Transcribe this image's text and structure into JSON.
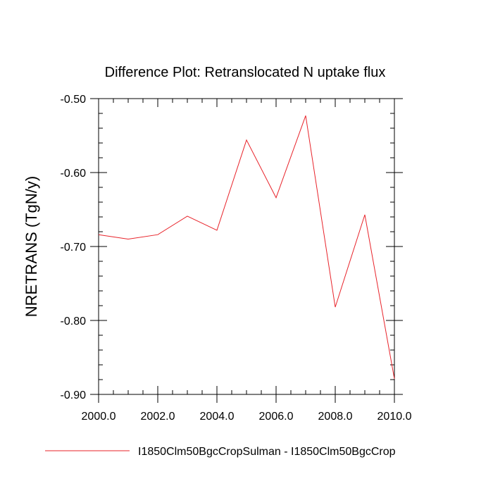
{
  "chart_data": {
    "type": "line",
    "title": "Difference Plot: Retranslocated N uptake flux",
    "xlabel": "",
    "ylabel": "NRETRANS  (TgN/y)",
    "xlim": [
      2000,
      2010
    ],
    "ylim": [
      -0.9,
      -0.5
    ],
    "x_ticks": [
      "2000.0",
      "2002.0",
      "2004.0",
      "2006.0",
      "2008.0",
      "2010.0"
    ],
    "y_ticks": [
      "-0.50",
      "-0.60",
      "-0.70",
      "-0.80",
      "-0.90"
    ],
    "grid": false,
    "legend_position": "bottom-left",
    "series": [
      {
        "name": "I1850Clm50BgcCropSulman - I1850Clm50BgcCrop",
        "color": "#e8232a",
        "x": [
          2000,
          2001,
          2002,
          2003,
          2004,
          2005,
          2006,
          2007,
          2008,
          2009,
          2010
        ],
        "y": [
          -0.684,
          -0.69,
          -0.684,
          -0.659,
          -0.678,
          -0.556,
          -0.634,
          -0.523,
          -0.782,
          -0.657,
          -0.879
        ]
      }
    ]
  }
}
